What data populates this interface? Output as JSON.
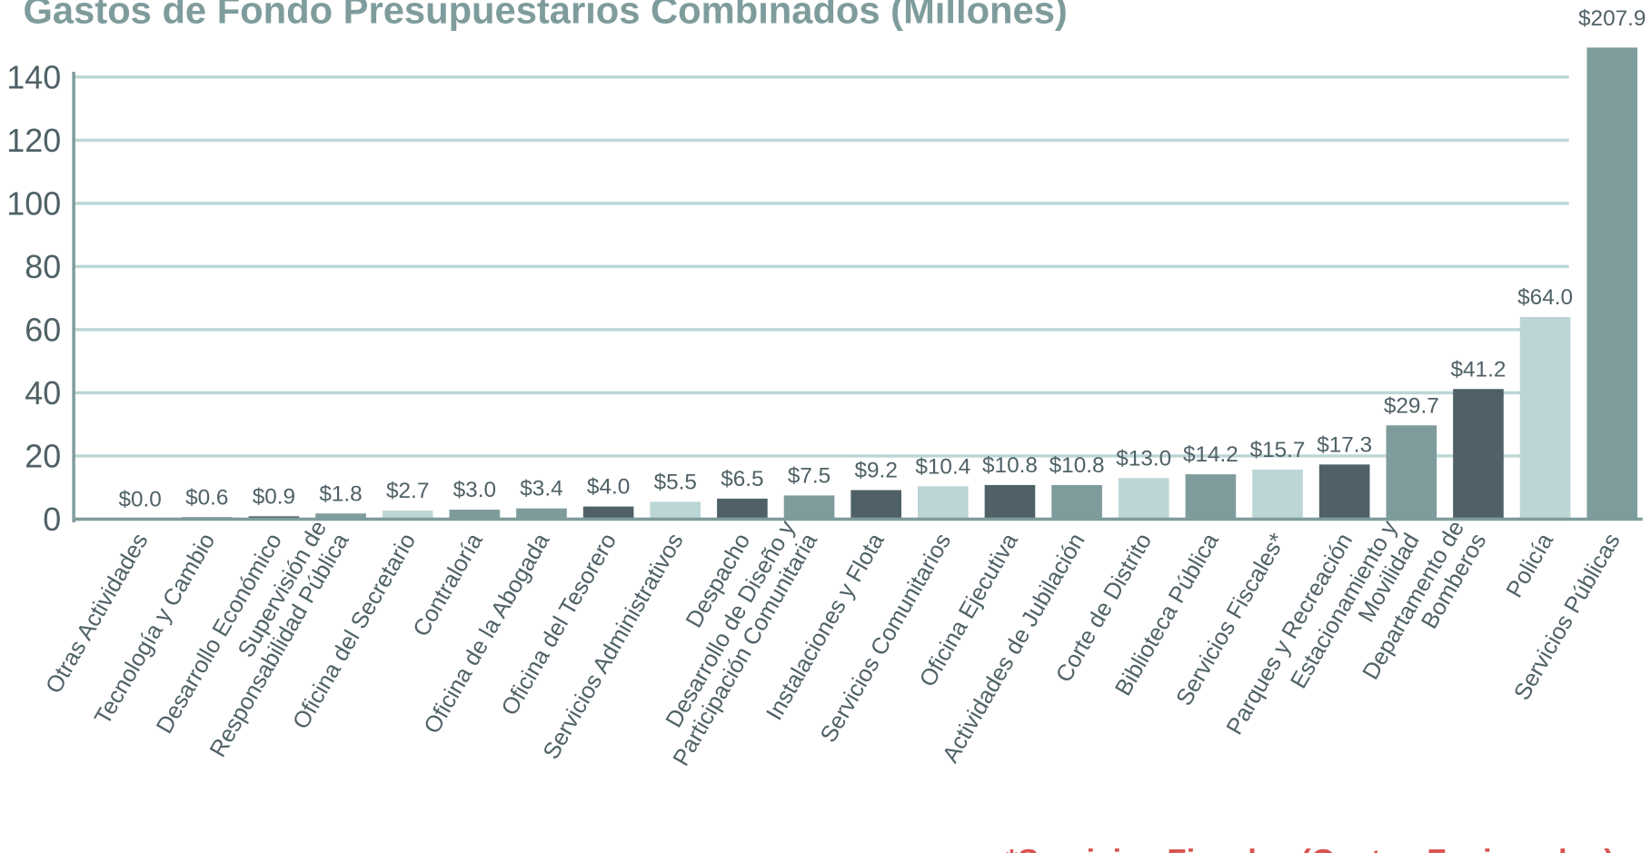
{
  "chart_data": {
    "type": "bar",
    "title": "Gastos de Fondo Presupuestarios Combinados (Millones)",
    "note": "*Servicios Fiscales (Gastos Fusionados)",
    "categories": [
      "Otras Actividades",
      "Tecnología y Cambio",
      "Desarrollo Económico",
      "Supervisión de\nResponsabilidad Pública",
      "Oficina del Secretario",
      "Contraloría",
      "Oficina de la Abogada",
      "Oficina del Tesorero",
      "Servicios Administrativos",
      "Despacho",
      "Desarrollo de Diseño y\nParticipación Comunitaria",
      "Instalaciones y Flota",
      "Servicios Comunitarios",
      "Oficina Ejecutiva",
      "Actividades de Jubilación",
      "Corte de Distrito",
      "Biblioteca Pública",
      "Servicios Fiscales*",
      "Parques y Recreación",
      "Estacionamiento y\nMovilidad",
      "Departamento de\nBomberos",
      "Policía",
      "Servicios Públicas"
    ],
    "values": [
      0.0,
      0.6,
      0.9,
      1.8,
      2.7,
      3.0,
      3.4,
      4.0,
      5.5,
      6.5,
      7.5,
      9.2,
      10.4,
      10.8,
      10.8,
      13.0,
      14.2,
      15.7,
      17.3,
      29.7,
      41.2,
      64.0,
      207.9
    ],
    "value_labels": [
      "$0.0",
      "$0.6",
      "$0.9",
      "$1.8",
      "$2.7",
      "$3.0",
      "$3.4",
      "$4.0",
      "$5.5",
      "$6.5",
      "$7.5",
      "$9.2",
      "$10.4",
      "$10.8",
      "$10.8",
      "$13.0",
      "$14.2",
      "$15.7",
      "$17.3",
      "$29.7",
      "$41.2",
      "$64.0",
      "$207.9"
    ],
    "colors": [
      "#4f6166",
      "#4f6166",
      "#4f6166",
      "#7f9c9c",
      "#bcd6d6",
      "#7f9c9c",
      "#7f9c9c",
      "#4f6166",
      "#bcd6d6",
      "#4f6166",
      "#7f9c9c",
      "#4f6166",
      "#bcd6d6",
      "#4f6166",
      "#7f9c9c",
      "#bcd6d6",
      "#7f9c9c",
      "#bcd6d6",
      "#4f6166",
      "#7f9c9c",
      "#4f6166",
      "#bcd6d6",
      "#7f9c9c"
    ],
    "ylim": [
      0,
      140
    ],
    "yticks": [
      0,
      20,
      40,
      60,
      80,
      100,
      120,
      140
    ],
    "grid": true
  }
}
